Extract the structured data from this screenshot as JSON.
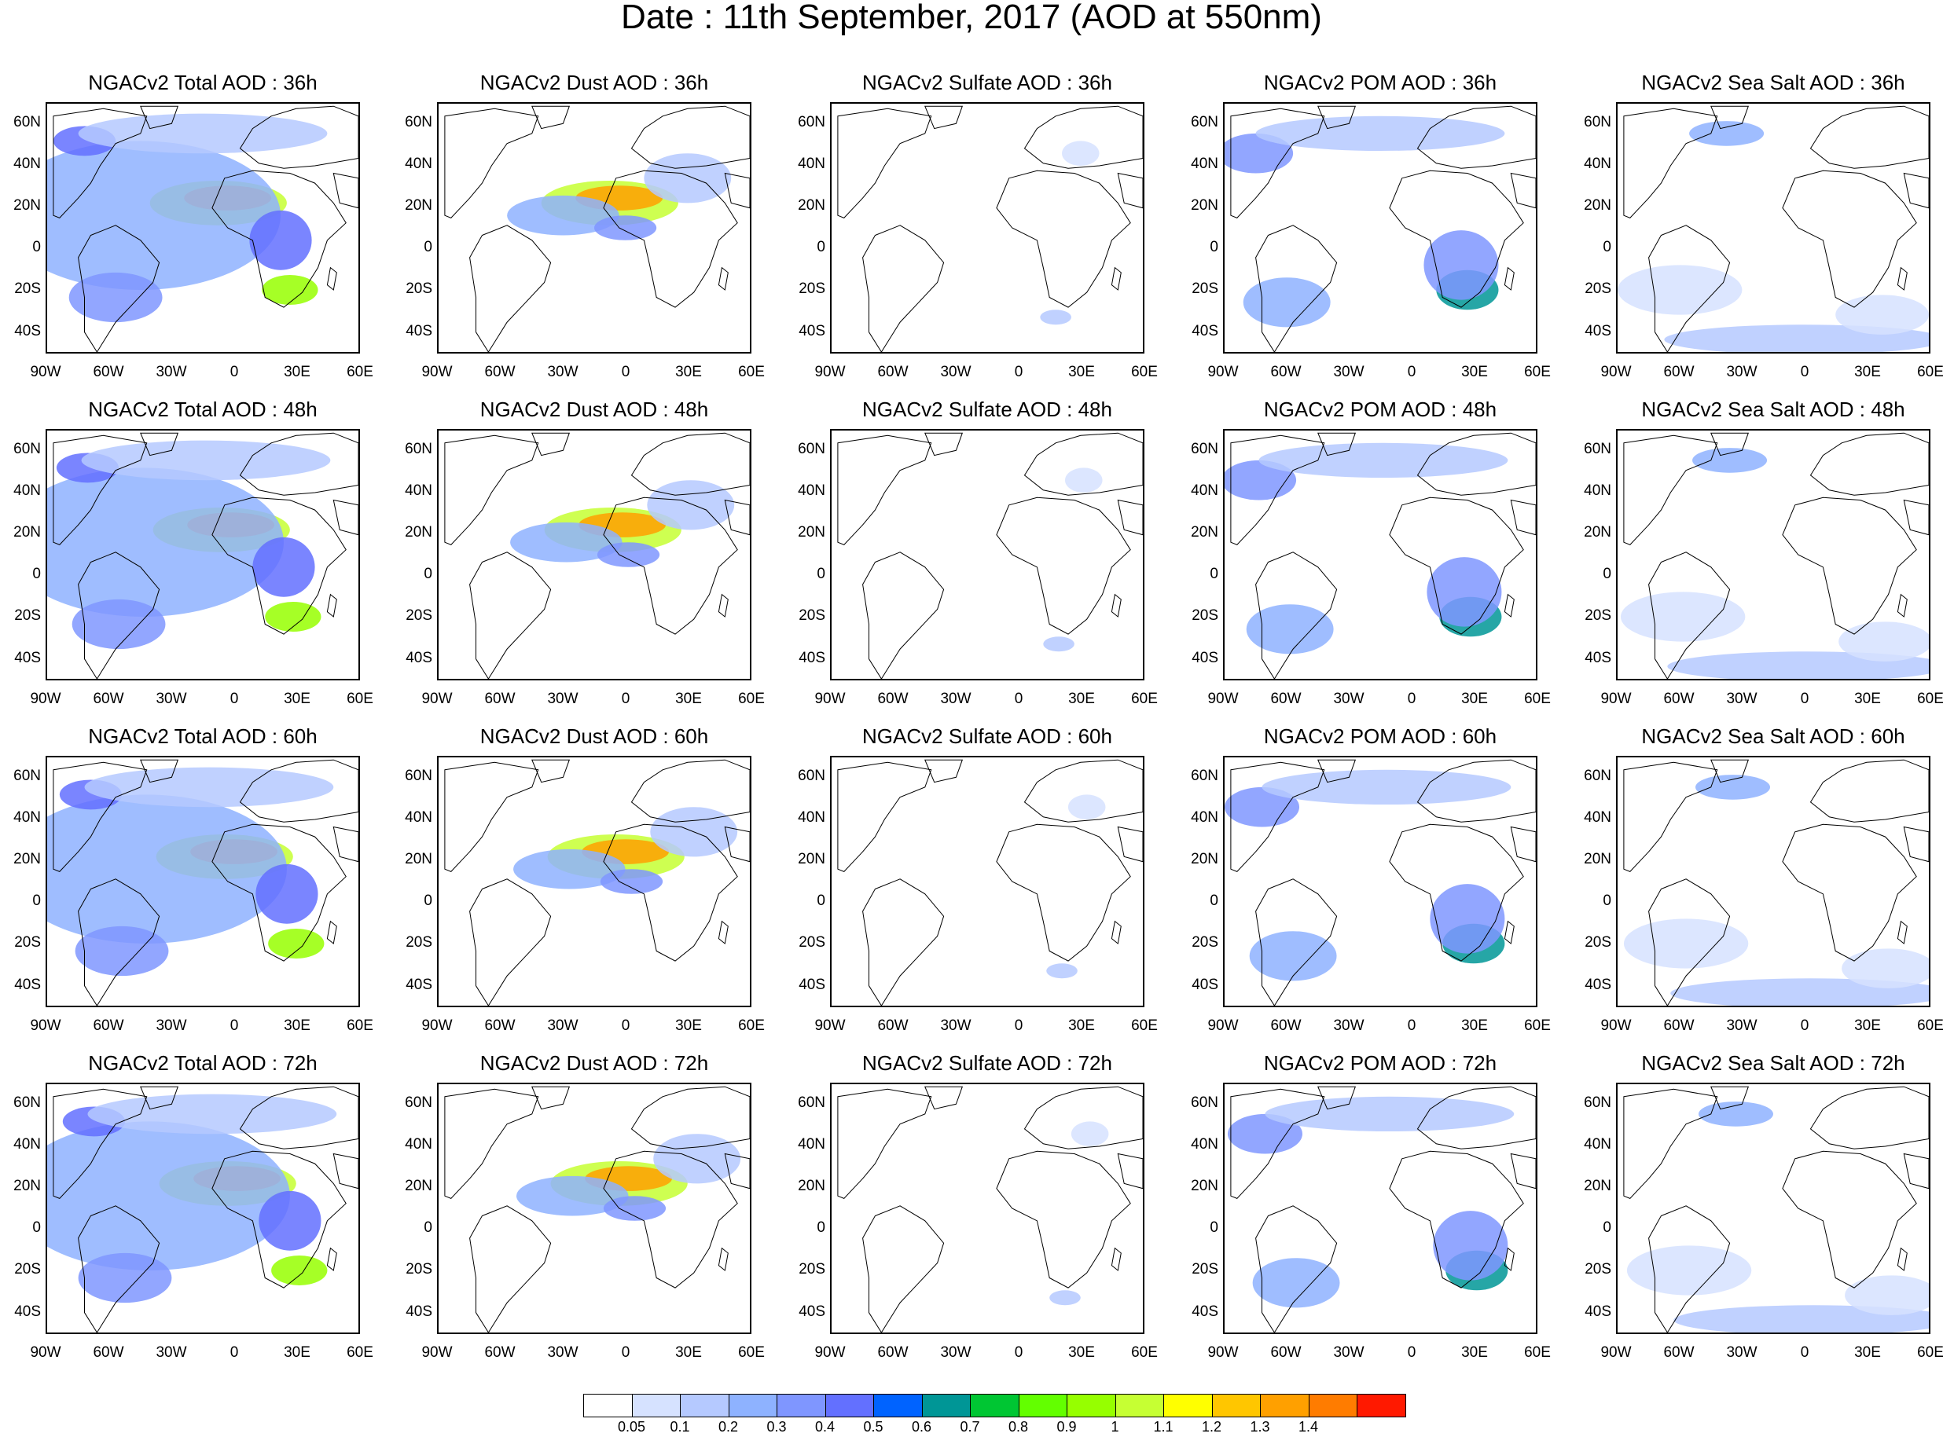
{
  "title": "Date : 11th September, 2017 (AOD at 550nm)",
  "columns": [
    {
      "key": "total",
      "color_weight": 1.0
    },
    {
      "key": "dust",
      "color_weight": 1.0
    },
    {
      "key": "sulfate",
      "color_weight": 0.15
    },
    {
      "key": "pom",
      "color_weight": 0.55
    },
    {
      "key": "seasalt",
      "color_weight": 0.3
    }
  ],
  "panels": [
    [
      "NGACv2 Total AOD : 36h",
      "NGACv2 Dust AOD : 36h",
      "NGACv2 Sulfate AOD : 36h",
      "NGACv2 POM AOD : 36h",
      "NGACv2 Sea Salt AOD : 36h"
    ],
    [
      "NGACv2 Total AOD : 48h",
      "NGACv2 Dust AOD : 48h",
      "NGACv2 Sulfate AOD : 48h",
      "NGACv2 POM AOD : 48h",
      "NGACv2 Sea Salt AOD : 48h"
    ],
    [
      "NGACv2 Total AOD : 60h",
      "NGACv2 Dust AOD : 60h",
      "NGACv2 Sulfate AOD : 60h",
      "NGACv2 POM AOD : 60h",
      "NGACv2 Sea Salt AOD : 60h"
    ],
    [
      "NGACv2 Total AOD : 72h",
      "NGACv2 Dust AOD : 72h",
      "NGACv2 Sulfate AOD : 72h",
      "NGACv2 POM AOD : 72h",
      "NGACv2 Sea Salt  AOD : 72h"
    ]
  ],
  "lat_labels": [
    "60N",
    "40N",
    "20N",
    "0",
    "20S",
    "40S"
  ],
  "lon_labels": [
    "90W",
    "60W",
    "30W",
    "0",
    "30E",
    "60E"
  ],
  "colorbar": {
    "labels": [
      "0.05",
      "0.1",
      "0.2",
      "0.3",
      "0.4",
      "0.5",
      "0.6",
      "0.7",
      "0.8",
      "0.9",
      "1",
      "1.1",
      "1.2",
      "1.3",
      "1.4"
    ],
    "colors": [
      "#ffffff",
      "#d6e2ff",
      "#b5c9ff",
      "#8eb2ff",
      "#7f96ff",
      "#6370ff",
      "#0063ff",
      "#009696",
      "#00c633",
      "#63ff00",
      "#96ff00",
      "#c6ff33",
      "#ffff00",
      "#ffc600",
      "#ffa000",
      "#ff7c00",
      "#ff1900"
    ]
  }
}
